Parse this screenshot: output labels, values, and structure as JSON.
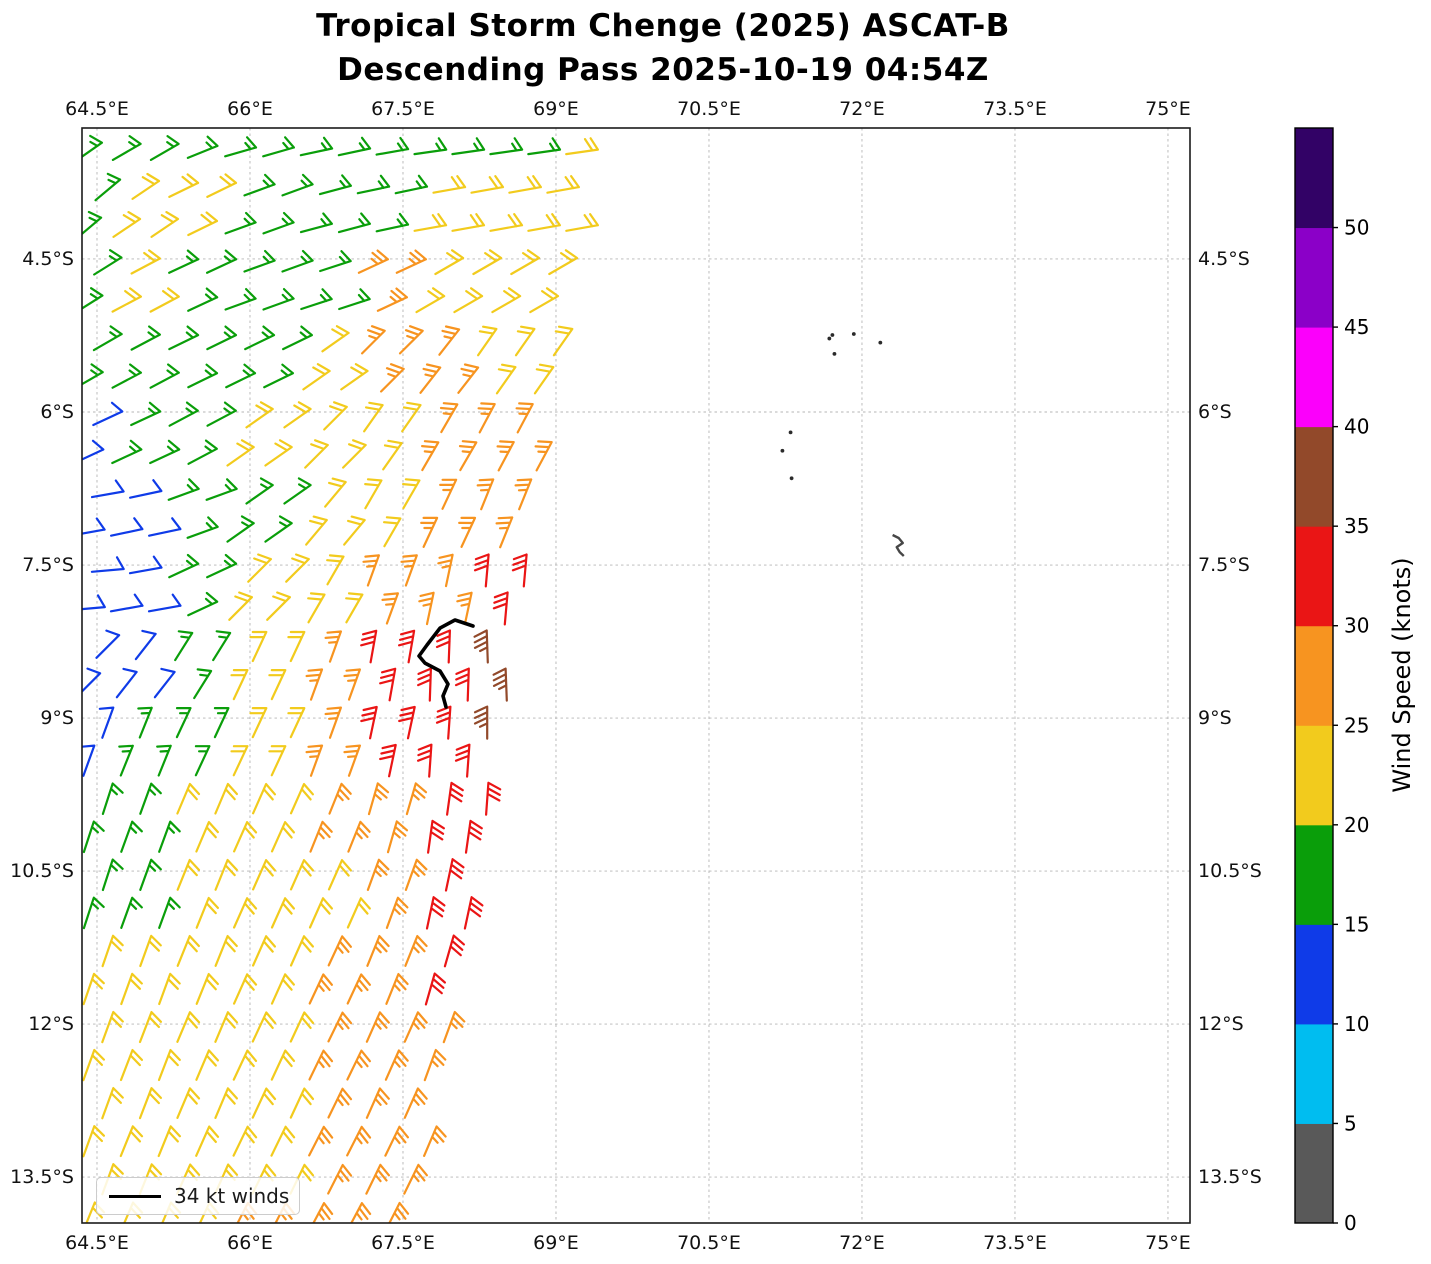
{
  "title": {
    "line1": "Tropical Storm Chenge (2025) ASCAT-B",
    "line2": "Descending Pass 2025-10-19 04:54Z"
  },
  "legend": {
    "label": "34 kt winds"
  },
  "colorbar": {
    "label": "Wind Speed (knots)",
    "tick_labels": [
      "0",
      "5",
      "10",
      "15",
      "20",
      "25",
      "30",
      "35",
      "40",
      "45",
      "50"
    ],
    "tick_values": [
      0,
      5,
      10,
      15,
      20,
      25,
      30,
      35,
      40,
      45,
      50
    ],
    "levels": [
      0,
      5,
      10,
      15,
      20,
      25,
      30,
      35,
      40,
      45,
      50,
      55
    ],
    "colors": [
      "#595959",
      "#00bdf0",
      "#0f3be8",
      "#0a9e0a",
      "#f2cb1d",
      "#f79420",
      "#ea1515",
      "#92492a",
      "#fb00fb",
      "#8b00c8",
      "#320266"
    ]
  },
  "axes": {
    "x_tick_labels": [
      "64.5°E",
      "66°E",
      "67.5°E",
      "69°E",
      "70.5°E",
      "72°E",
      "73.5°E",
      "75°E"
    ],
    "x_tick_values": [
      64.5,
      66,
      67.5,
      69,
      70.5,
      72,
      73.5,
      75
    ],
    "y_tick_labels": [
      "4.5°S",
      "6°S",
      "7.5°S",
      "9°S",
      "10.5°S",
      "12°S",
      "13.5°S"
    ],
    "y_tick_values": [
      4.5,
      6,
      7.5,
      9,
      10.5,
      12,
      13.5
    ],
    "lon_range": [
      64.353,
      75.216
    ],
    "lat_range": [
      3.216,
      13.95
    ],
    "grid": "dashed"
  },
  "chart_data": {
    "type": "wind_barbs",
    "title": "Tropical Storm Chenge (2025) ASCAT-B Descending Pass 2025-10-19 04:54Z",
    "units": "knots",
    "storm_center": {
      "lon": 67.9,
      "lat": 8.55
    },
    "grid": {
      "lons": [
        64.4,
        65.0,
        65.6,
        66.2,
        66.8,
        67.4,
        68.0,
        68.6,
        69.2
      ],
      "lats": [
        3.4,
        4.15,
        4.9,
        5.65,
        6.4,
        7.15,
        7.9,
        8.65,
        9.4,
        10.15,
        10.9,
        11.65,
        12.4,
        13.15,
        13.9
      ],
      "speed_kt": [
        [
          17,
          17,
          17,
          17,
          17,
          17,
          17,
          17,
          22
        ],
        [
          17,
          22,
          22,
          17,
          17,
          17,
          22,
          22,
          22
        ],
        [
          17,
          22,
          17,
          17,
          17,
          27,
          22,
          22,
          22
        ],
        [
          17,
          17,
          17,
          17,
          22,
          27,
          27,
          22,
          22
        ],
        [
          12,
          17,
          17,
          22,
          22,
          22,
          27,
          27,
          27
        ],
        [
          12,
          12,
          17,
          17,
          22,
          22,
          27,
          27,
          27
        ],
        [
          12,
          12,
          17,
          22,
          22,
          27,
          27,
          32,
          32
        ],
        [
          12,
          12,
          17,
          22,
          27,
          32,
          32,
          37,
          37
        ],
        [
          12,
          17,
          17,
          22,
          27,
          32,
          32,
          37,
          37
        ],
        [
          17,
          17,
          22,
          22,
          27,
          27,
          32,
          32,
          32
        ],
        [
          17,
          17,
          22,
          22,
          22,
          27,
          32,
          32,
          32
        ],
        [
          22,
          22,
          22,
          22,
          27,
          27,
          32,
          32,
          32
        ],
        [
          22,
          22,
          22,
          22,
          27,
          27,
          27,
          27,
          27
        ],
        [
          22,
          22,
          22,
          22,
          27,
          27,
          27,
          27,
          27
        ],
        [
          22,
          22,
          22,
          27,
          27,
          27,
          27,
          27,
          27
        ]
      ],
      "tail_dir_deg": [
        [
          35,
          30,
          22,
          16,
          12,
          10,
          8,
          8,
          8
        ],
        [
          40,
          34,
          26,
          20,
          15,
          12,
          10,
          10,
          10
        ],
        [
          32,
          28,
          25,
          20,
          18,
          25,
          30,
          30,
          30
        ],
        [
          30,
          28,
          26,
          26,
          35,
          45,
          52,
          55,
          55
        ],
        [
          25,
          25,
          28,
          35,
          45,
          55,
          60,
          62,
          62
        ],
        [
          10,
          12,
          20,
          35,
          50,
          60,
          65,
          68,
          68
        ],
        [
          5,
          10,
          25,
          45,
          60,
          70,
          78,
          85,
          85
        ],
        [
          45,
          52,
          58,
          65,
          70,
          80,
          88,
          92,
          92
        ],
        [
          70,
          68,
          65,
          65,
          70,
          78,
          86,
          90,
          90
        ],
        [
          72,
          70,
          67,
          66,
          68,
          74,
          82,
          86,
          86
        ],
        [
          72,
          70,
          68,
          66,
          66,
          70,
          78,
          82,
          82
        ],
        [
          71,
          70,
          68,
          66,
          65,
          68,
          74,
          78,
          78
        ],
        [
          70,
          69,
          67,
          65,
          64,
          66,
          70,
          73,
          73
        ],
        [
          70,
          68,
          66,
          64,
          63,
          64,
          67,
          70,
          70
        ],
        [
          68,
          67,
          65,
          63,
          62,
          63,
          65,
          68,
          68
        ]
      ]
    },
    "swath": {
      "lon_min": 64.42,
      "lon_max_at_ref": 69.42,
      "ref_lat": 3.3,
      "slope_deg_per_deg": -0.16
    },
    "barb_style": {
      "dlon": 0.372,
      "dlat": 0.373,
      "stagger": 0.186,
      "flip_side_south_of_lat": 9.7
    },
    "contour_34kt": [
      [
        68.186,
        8.098
      ],
      [
        68.01,
        8.039
      ],
      [
        67.863,
        8.118
      ],
      [
        67.735,
        8.284
      ],
      [
        67.657,
        8.392
      ],
      [
        67.716,
        8.461
      ],
      [
        67.863,
        8.539
      ],
      [
        67.941,
        8.667
      ],
      [
        67.892,
        8.784
      ],
      [
        67.922,
        8.892
      ]
    ],
    "islands": {
      "dots": [
        [
          71.71,
          5.245
        ],
        [
          71.68,
          5.28
        ],
        [
          71.92,
          5.235
        ],
        [
          72.18,
          5.32
        ],
        [
          71.73,
          5.43
        ],
        [
          71.3,
          6.2
        ],
        [
          71.22,
          6.38
        ],
        [
          71.31,
          6.65
        ]
      ],
      "outline": [
        [
          72.3,
          7.206
        ],
        [
          72.36,
          7.235
        ],
        [
          72.4,
          7.284
        ],
        [
          72.34,
          7.324
        ],
        [
          72.37,
          7.373
        ],
        [
          72.41,
          7.412
        ]
      ]
    }
  }
}
